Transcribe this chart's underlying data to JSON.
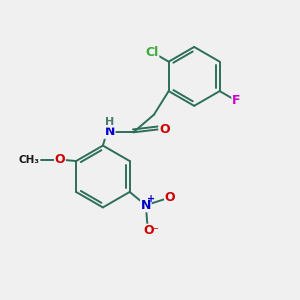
{
  "background_color": "#f0f0f0",
  "bond_color": "#2d6e5a",
  "atom_colors": {
    "C": "#1a1a1a",
    "H": "#4a7a6a",
    "N": "#0000cc",
    "O": "#cc0000",
    "Cl": "#3aaa3a",
    "F": "#cc00cc"
  },
  "font_size": 9,
  "fig_size": [
    3.0,
    3.0
  ],
  "dpi": 100,
  "lw": 1.4
}
